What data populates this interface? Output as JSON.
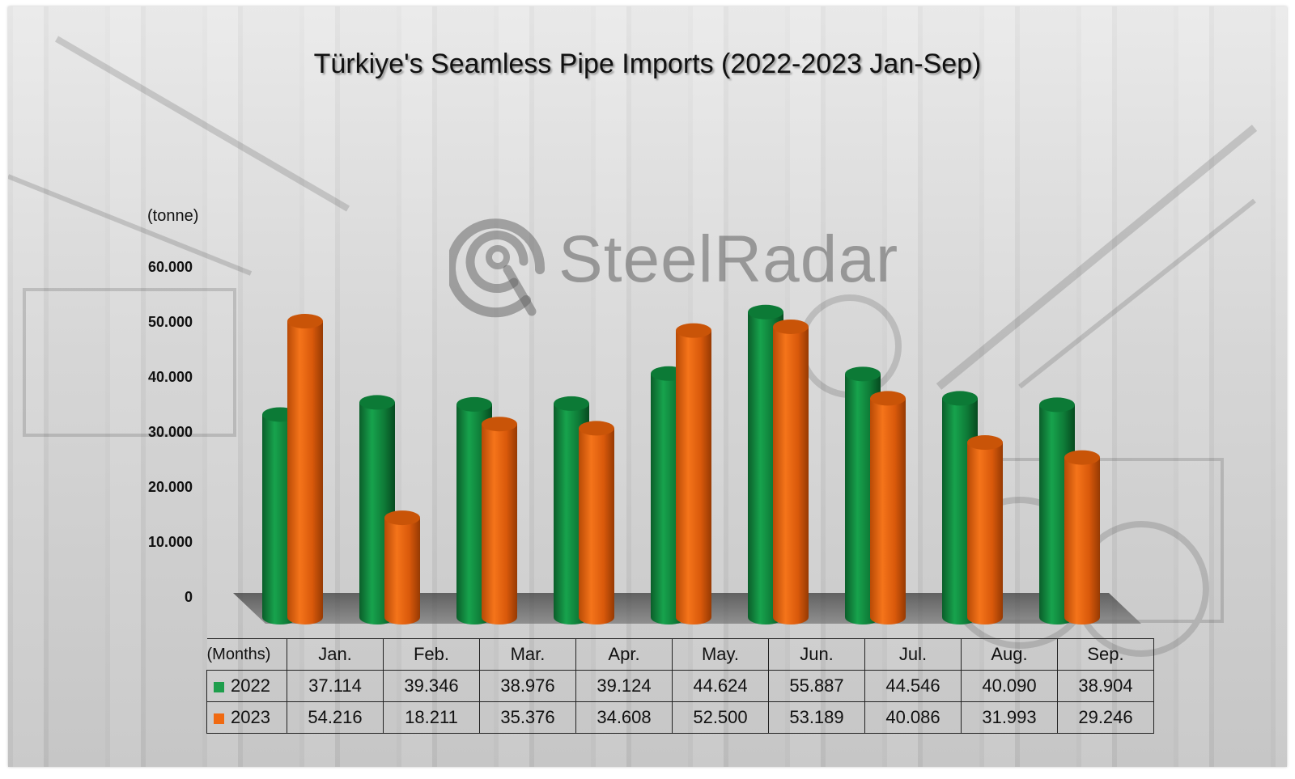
{
  "chart_data": {
    "type": "bar",
    "title": "Türkiye's Seamless Pipe Imports (2022-2023 Jan-Sep)",
    "ylabel": "(tonne)",
    "xlabel": "(Months)",
    "categories": [
      "Jan.",
      "Feb.",
      "Mar.",
      "Apr.",
      "May.",
      "Jun.",
      "Jul.",
      "Aug.",
      "Sep."
    ],
    "y_ticks": [
      "60.000",
      "50.000",
      "40.000",
      "30.000",
      "20.000",
      "10.000",
      "0"
    ],
    "ylim": [
      0,
      60000
    ],
    "grid": false,
    "legend": "data table below chart",
    "series": [
      {
        "name": "2022",
        "color": "#1e9e4c",
        "values": [
          37114,
          39346,
          38976,
          39124,
          44624,
          55887,
          44546,
          40090,
          38904
        ],
        "labels": [
          "37.114",
          "39.346",
          "38.976",
          "39.124",
          "44.624",
          "55.887",
          "44.546",
          "40.090",
          "38.904"
        ]
      },
      {
        "name": "2023",
        "color": "#f06a12",
        "values": [
          54216,
          18211,
          35376,
          34608,
          52500,
          53189,
          40086,
          31993,
          29246
        ],
        "labels": [
          "54.216",
          "18.211",
          "35.376",
          "34.608",
          "52.500",
          "53.189",
          "40.086",
          "31.993",
          "29.246"
        ]
      }
    ]
  },
  "watermark": "SteelRadar"
}
